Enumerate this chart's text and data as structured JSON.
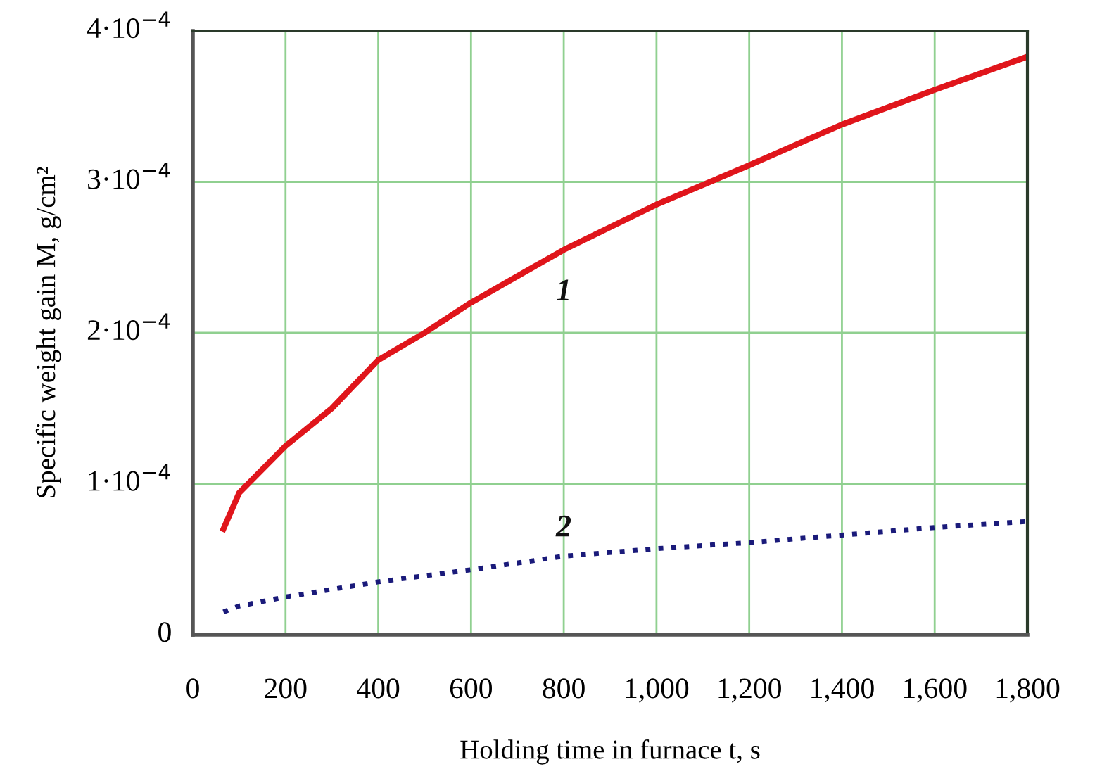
{
  "chart_data": {
    "type": "line",
    "xlabel": "Holding time in furnace t, s",
    "ylabel": "Specific weight gain M, g/cm²",
    "x": [
      66,
      100,
      200,
      300,
      400,
      500,
      600,
      800,
      1000,
      1200,
      1400,
      1600,
      1800
    ],
    "series": [
      {
        "name": "1",
        "color": "#e0151b",
        "line_style": "solid",
        "values": [
          7e-05,
          9.4e-05,
          0.000125,
          0.00015,
          0.000182,
          0.0002,
          0.00022,
          0.000255,
          0.000285,
          0.000311,
          0.000338,
          0.000361,
          0.000383
        ]
      },
      {
        "name": "2",
        "color": "#1a1a7a",
        "line_style": "dotted",
        "values": [
          1.5e-05,
          1.9e-05,
          2.5e-05,
          3e-05,
          3.5e-05,
          3.9e-05,
          4.3e-05,
          5.2e-05,
          5.7e-05,
          6.1e-05,
          6.6e-05,
          7.1e-05,
          7.5e-05
        ]
      }
    ],
    "xlim": [
      0,
      1800
    ],
    "xticks": [
      0,
      {
        "value": 200,
        "label": "200"
      },
      {
        "value": 400,
        "label": "400"
      },
      {
        "value": 600,
        "label": "600"
      },
      {
        "value": 800,
        "label": "800"
      },
      {
        "value": 1000,
        "label": "1,000"
      },
      {
        "value": 1200,
        "label": "1,200"
      },
      {
        "value": 1400,
        "label": "1,400"
      },
      {
        "value": 1600,
        "label": "1,600"
      },
      {
        "value": 1800,
        "label": "1,800"
      }
    ],
    "ylim": [
      0,
      0.0004
    ],
    "yticks": [
      0,
      {
        "value": 0.0001,
        "label": "1·10$^{−4}$"
      },
      {
        "value": 0.0002,
        "label": "2·10$^{−4}$"
      },
      {
        "value": 0.0003,
        "label": "3·10$^{−4}$"
      },
      {
        "value": 0.0004,
        "label": "4·10$^{−4}$"
      }
    ],
    "grid": true
  }
}
